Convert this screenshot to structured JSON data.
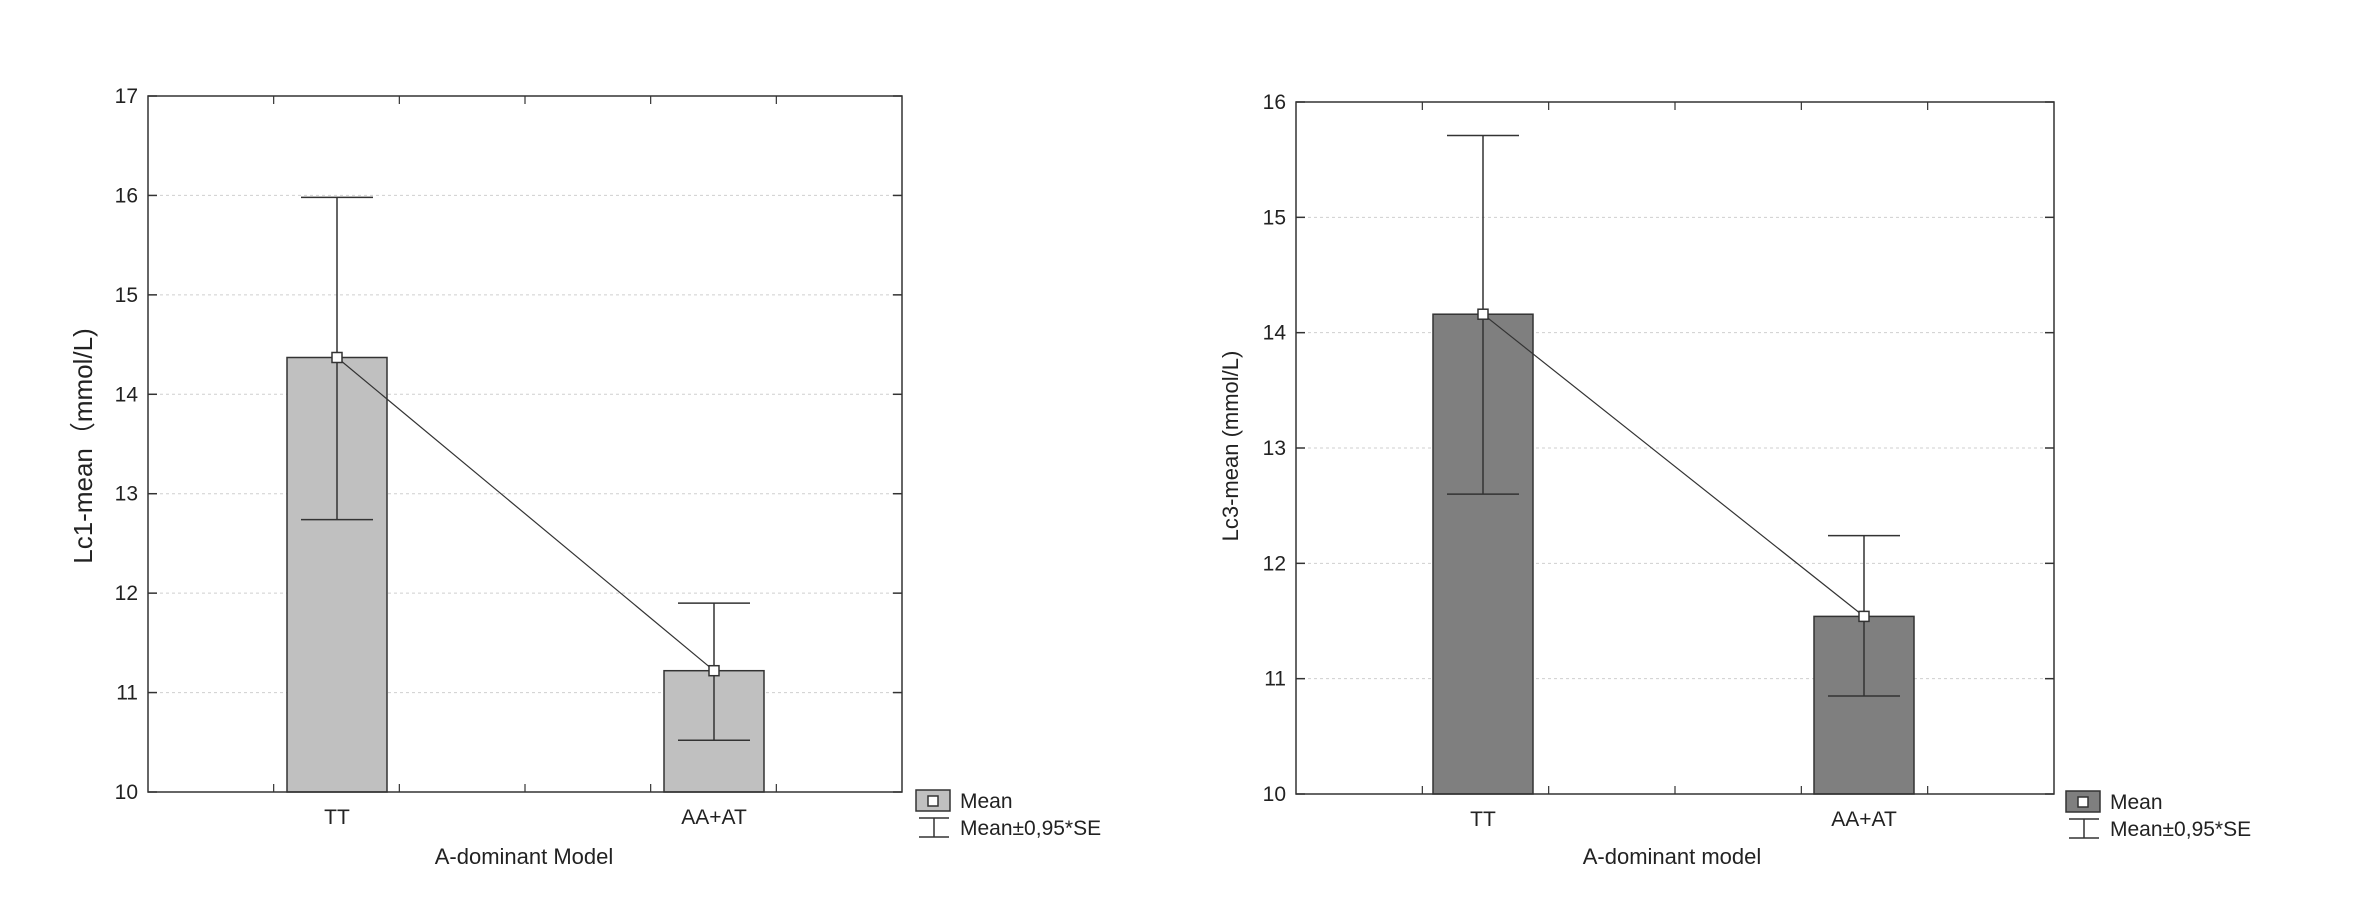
{
  "chart_data": [
    {
      "type": "bar",
      "categories": [
        "TT",
        "AA+AT"
      ],
      "values": [
        14.37,
        11.22
      ],
      "error_low": [
        12.74,
        10.52
      ],
      "error_high": [
        15.98,
        11.9
      ],
      "title": "",
      "xlabel": "A-dominant Model",
      "ylabel": "Lc1-mean（mmol/L)",
      "ylim": [
        10,
        17
      ],
      "yticks": [
        "10",
        "11",
        "12",
        "13",
        "14",
        "15",
        "16",
        "17"
      ],
      "grid": true,
      "bar_color": "#c0c0c0",
      "legend": {
        "mean_label": "Mean",
        "error_label": "Mean±0,95*SE",
        "placement": "bottom-right outside"
      }
    },
    {
      "type": "bar",
      "categories": [
        "TT",
        "AA+AT"
      ],
      "values": [
        14.16,
        11.54
      ],
      "error_low": [
        12.6,
        10.85
      ],
      "error_high": [
        15.71,
        12.24
      ],
      "title": "",
      "xlabel": "A-dominant model",
      "ylabel": "Lc3-mean (mmol/L)",
      "ylim": [
        10,
        16
      ],
      "yticks": [
        "10",
        "11",
        "12",
        "13",
        "14",
        "15",
        "16"
      ],
      "grid": true,
      "bar_color": "#7f7f7f",
      "legend": {
        "mean_label": "Mean",
        "error_label": "Mean±0,95*SE",
        "placement": "bottom-right outside"
      }
    }
  ]
}
